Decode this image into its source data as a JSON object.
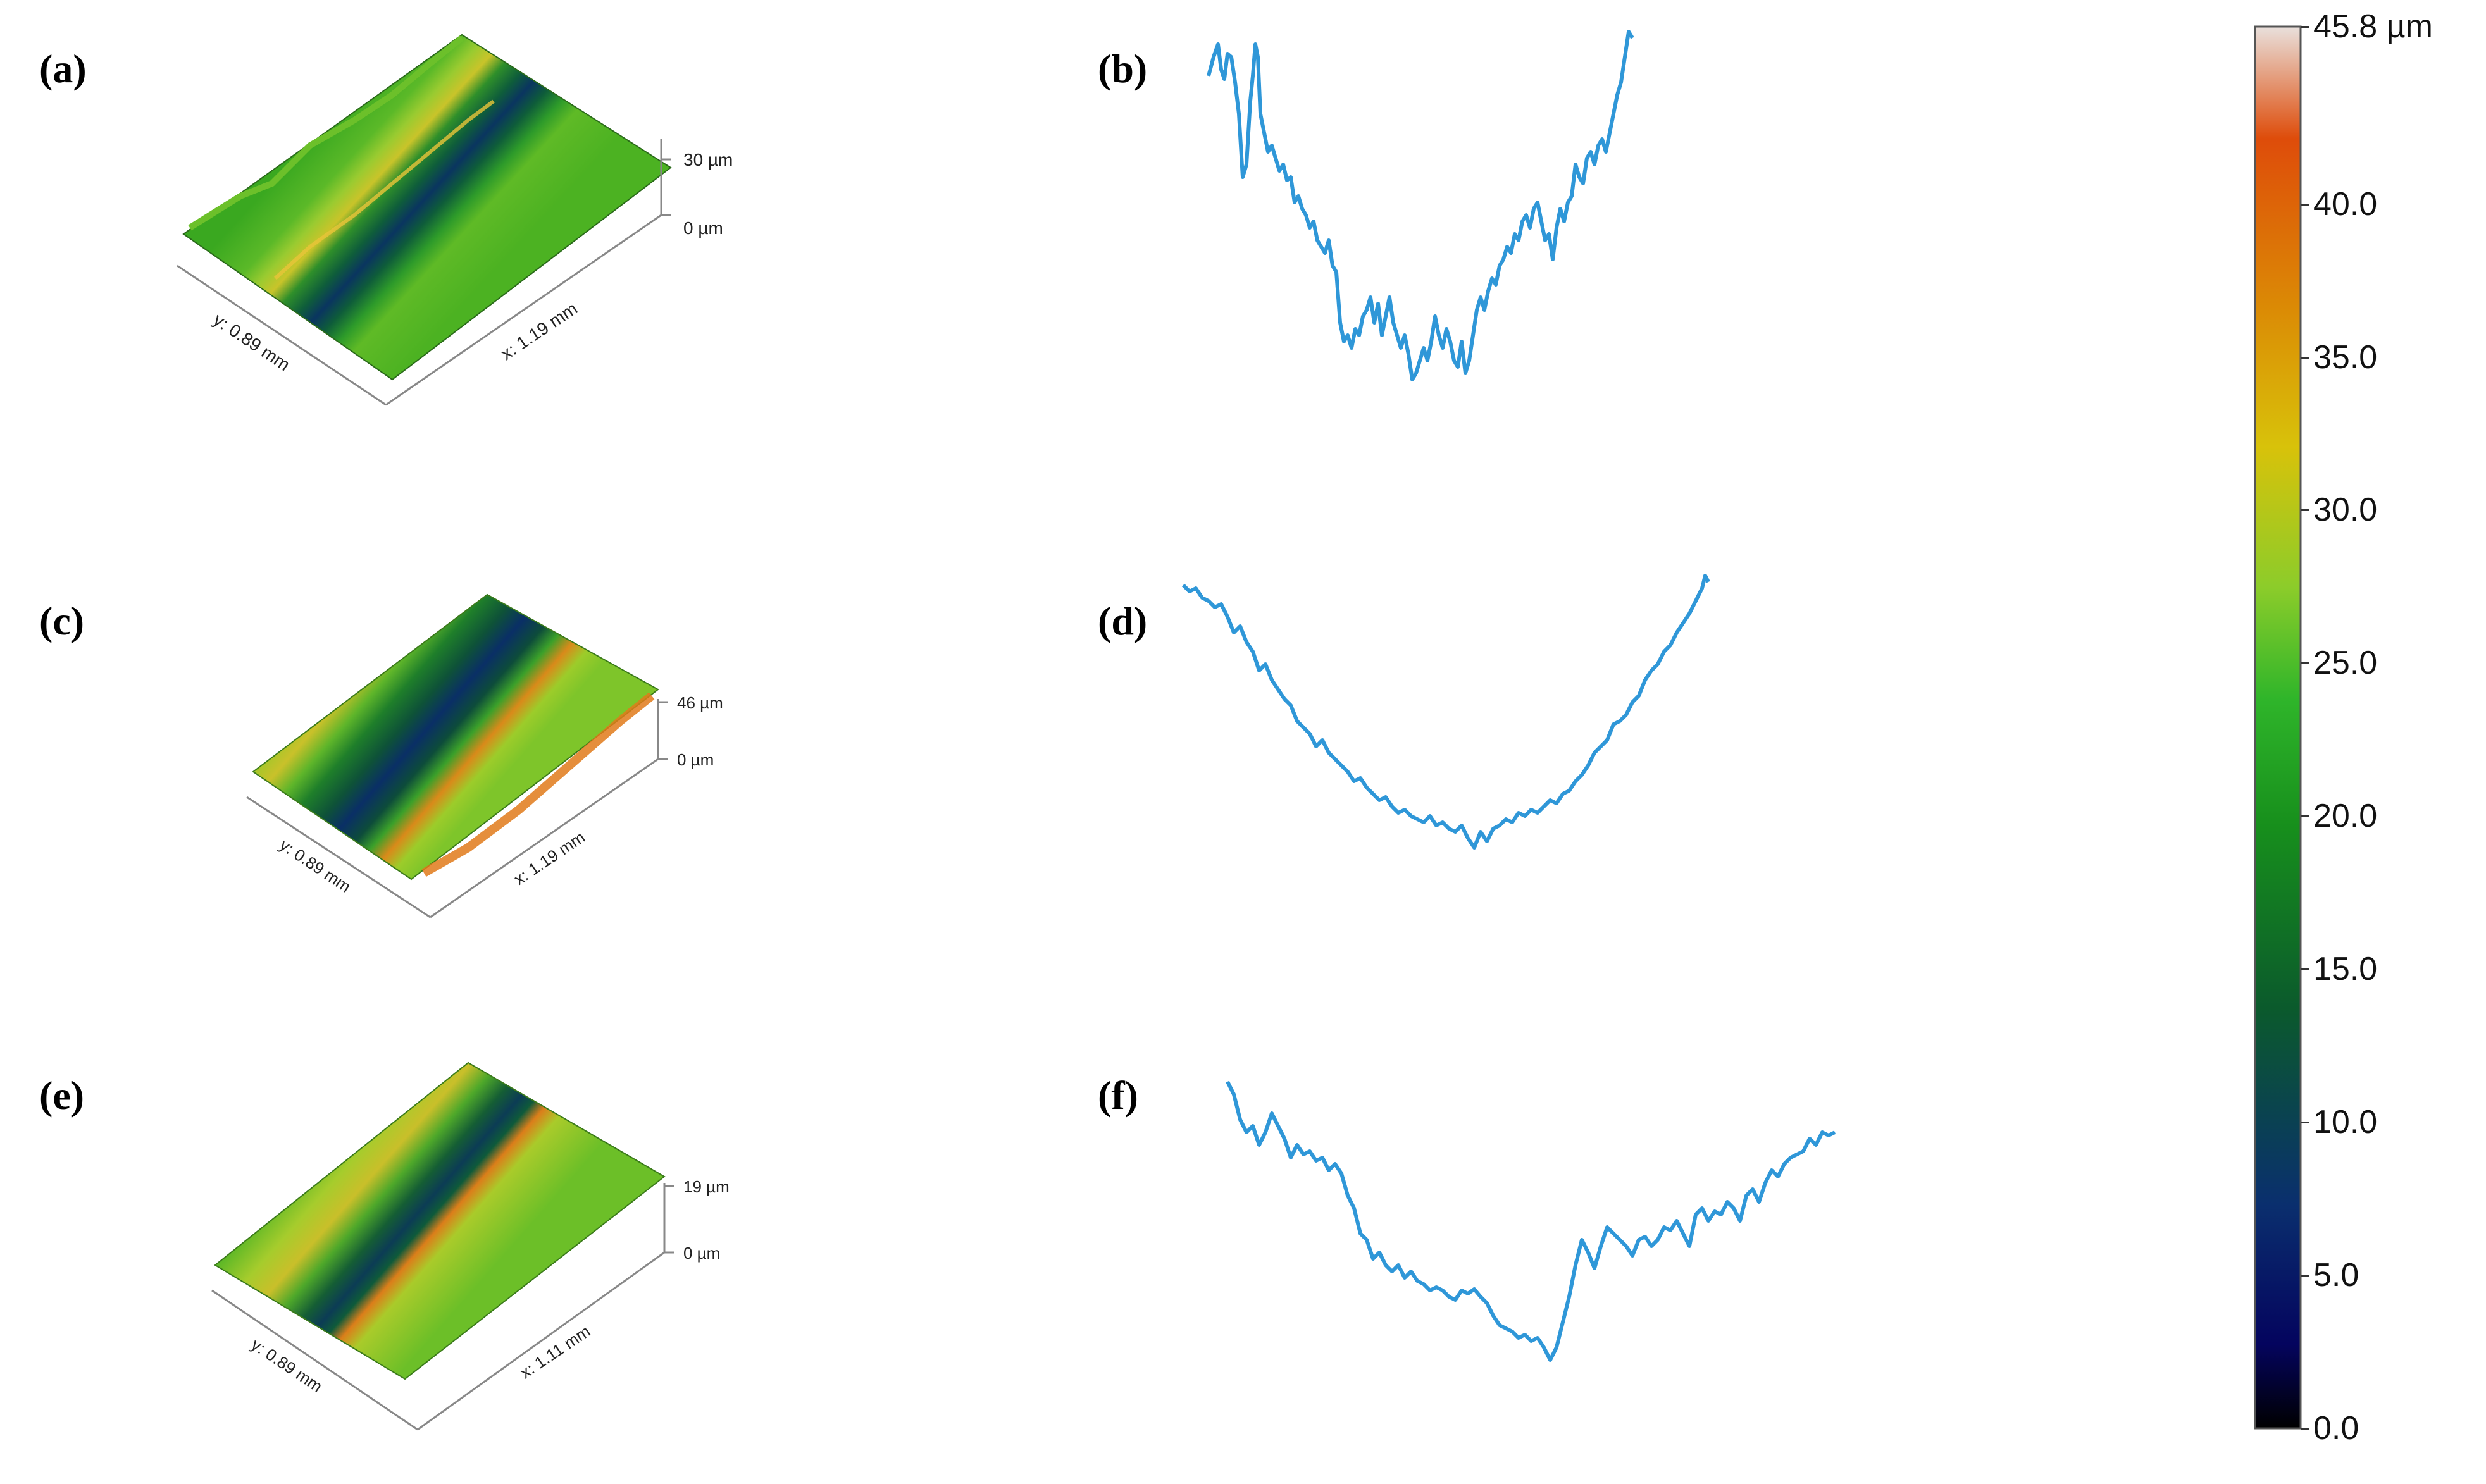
{
  "figure": {
    "panels": [
      {
        "id": "a",
        "label": "(a)",
        "kind": "surface",
        "z_top": "30 µm",
        "z_bottom": "0 µm",
        "y_axis": "y: 0.89 mm",
        "x_axis": "x: 1.19 mm"
      },
      {
        "id": "b",
        "label": "(b)",
        "kind": "profile"
      },
      {
        "id": "c",
        "label": "(c)",
        "kind": "surface",
        "z_top": "46 µm",
        "z_bottom": "0 µm",
        "y_axis": "y: 0.89 mm",
        "x_axis": "x: 1.19 mm"
      },
      {
        "id": "d",
        "label": "(d)",
        "kind": "profile"
      },
      {
        "id": "e",
        "label": "(e)",
        "kind": "surface",
        "z_top": "19 µm",
        "z_bottom": "0 µm",
        "y_axis": "y: 0.89 mm",
        "x_axis": "x: 1.11 mm"
      },
      {
        "id": "f",
        "label": "(f)",
        "kind": "profile"
      }
    ],
    "colorbar": {
      "ticks": [
        "45.8 µm",
        "40.0",
        "35.0",
        "30.0",
        "25.0",
        "20.0",
        "15.0",
        "10.0",
        "5.0",
        "0.0"
      ],
      "tick_values": [
        45.8,
        40,
        35,
        30,
        25,
        20,
        15,
        10,
        5,
        0
      ],
      "min": 0,
      "max": 45.8,
      "colors": [
        "#000000",
        "#04045e",
        "#0a2f6e",
        "#0b5a2c",
        "#178f1c",
        "#2fb52a",
        "#8ccc2a",
        "#d8c20a",
        "#db8a05",
        "#de4c0a",
        "#e9e0dc"
      ]
    },
    "line_color": "#2f97d8"
  }
}
